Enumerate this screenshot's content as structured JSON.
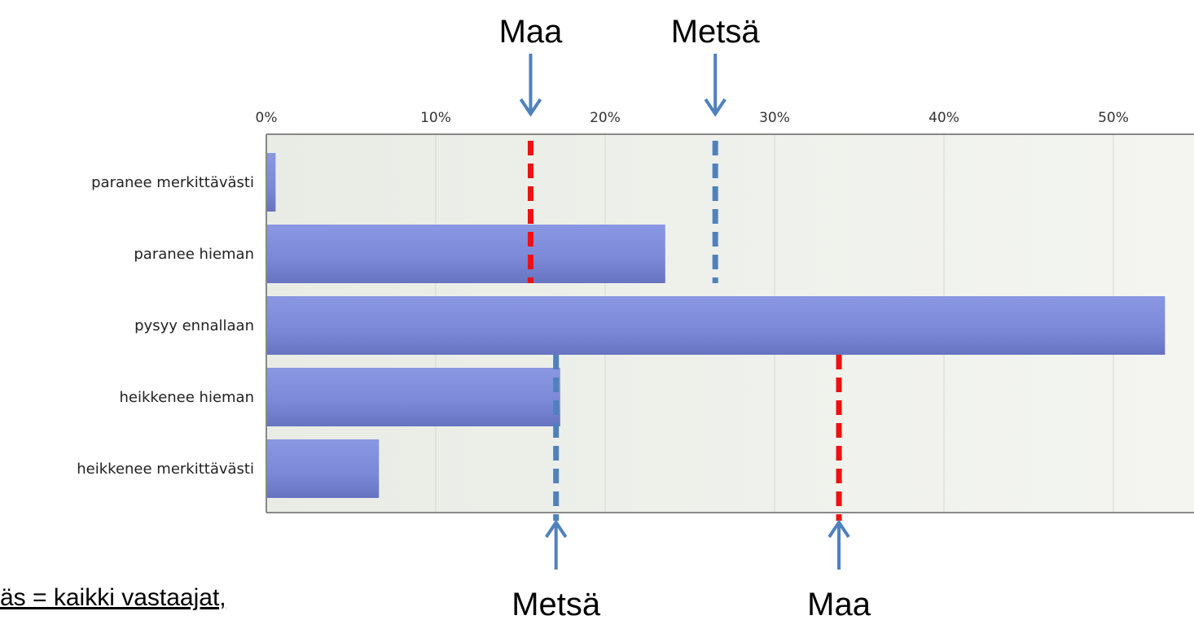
{
  "chart_data": {
    "type": "bar",
    "orientation": "horizontal",
    "categories": [
      "paranee merkittävästi",
      "paranee hieman",
      "pysyy ennallaan",
      "heikkenee hieman",
      "heikkenee merkittävästi"
    ],
    "values": [
      0.5,
      23.5,
      53,
      17.3,
      6.6
    ],
    "x_ticks": [
      "0%",
      "10%",
      "20%",
      "30%",
      "40%",
      "50%"
    ],
    "xlim": [
      0,
      54.5
    ],
    "grid": true,
    "colors": {
      "bar": "#7f8ddd",
      "bar_dark": "#6673c4",
      "plot_bg": "#eef0ea",
      "grid": "#d6d8d2",
      "axis": "#888888",
      "maa_line": "#ee1111",
      "metsa_line": "#4f81bd",
      "arrow": "#4f81bd"
    },
    "reference_lines": [
      {
        "label": "Maa",
        "value": 15.6,
        "position": "top",
        "color": "maa",
        "span_rows": [
          0,
          1
        ]
      },
      {
        "label": "Metsä",
        "value": 26.5,
        "position": "top",
        "color": "metsa",
        "span_rows": [
          0,
          1
        ]
      },
      {
        "label": "Metsä",
        "value": 17.1,
        "position": "bottom",
        "color": "metsa",
        "span_rows": [
          3,
          4
        ]
      },
      {
        "label": "Maa",
        "value": 33.8,
        "position": "bottom",
        "color": "maa",
        "span_rows": [
          3,
          4
        ]
      }
    ]
  },
  "footnote": "äs = kaikki vastaajat,"
}
